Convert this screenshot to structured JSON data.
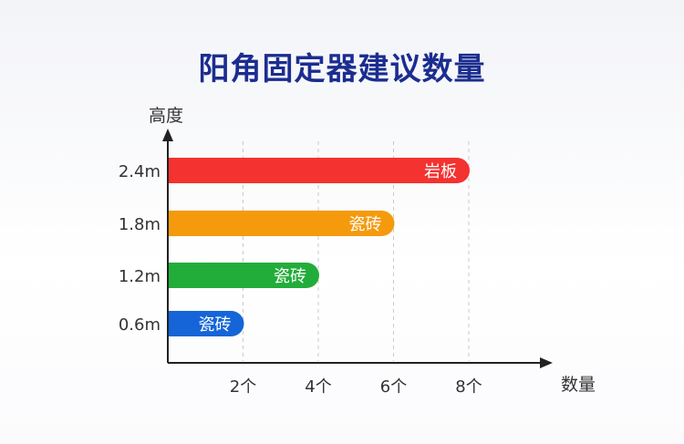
{
  "chart_data": {
    "type": "bar",
    "orientation": "horizontal",
    "title": "阳角固定器建议数量",
    "ylabel": "高度",
    "xlabel": "数量",
    "categories": [
      "0.6m",
      "1.2m",
      "1.8m",
      "2.4m"
    ],
    "values": [
      2,
      4,
      6,
      8
    ],
    "bar_labels": [
      "瓷砖",
      "瓷砖",
      "瓷砖",
      "岩板"
    ],
    "bar_colors": [
      "#1565d8",
      "#22ad3a",
      "#f59a0c",
      "#f4322f"
    ],
    "xticks": [
      {
        "value": 2,
        "label": "2个"
      },
      {
        "value": 4,
        "label": "4个"
      },
      {
        "value": 6,
        "label": "6个"
      },
      {
        "value": 8,
        "label": "8个"
      }
    ],
    "xlim": [
      0,
      10
    ],
    "grid": "vertical-dashed"
  }
}
